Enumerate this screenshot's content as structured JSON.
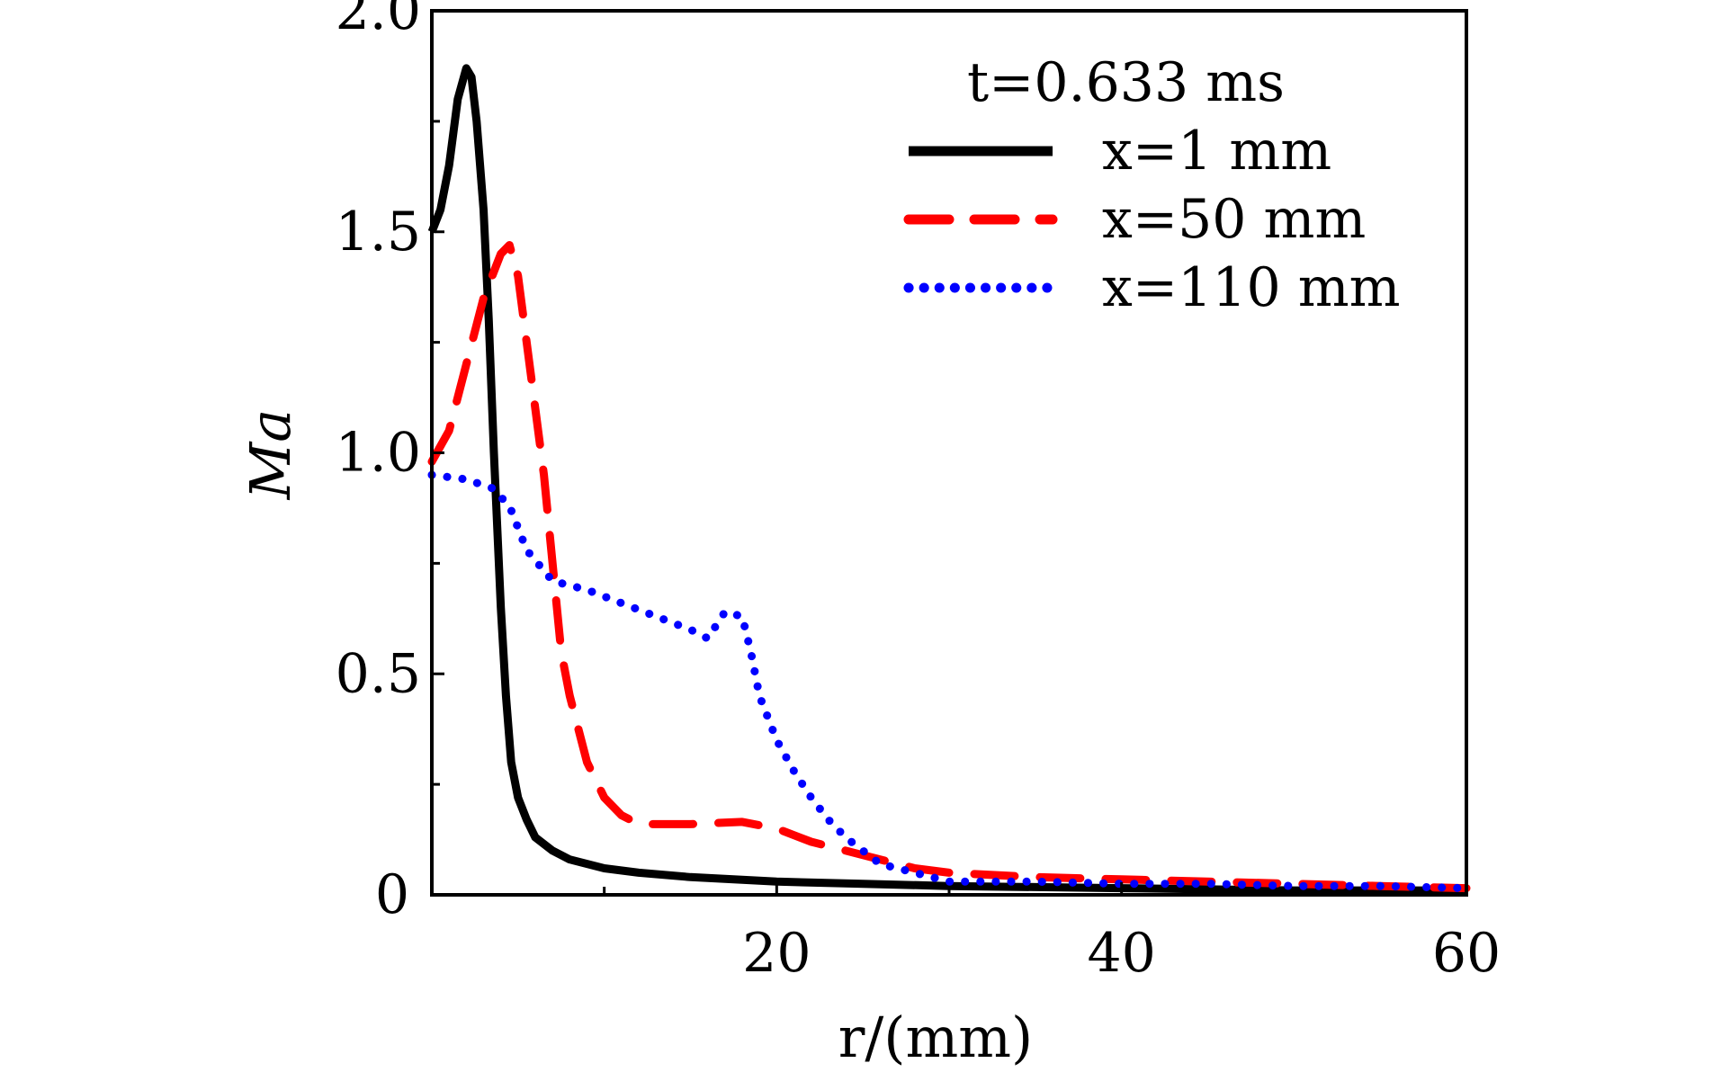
{
  "chart_data": {
    "type": "line",
    "title": "",
    "annotation": "t=0.633 ms",
    "xlabel": "r/(mm)",
    "ylabel": "Ma",
    "xlim": [
      0,
      60
    ],
    "ylim": [
      0,
      2.0
    ],
    "x_ticks": [
      20,
      40,
      60
    ],
    "x_tick_labels": [
      "20",
      "40",
      "60"
    ],
    "x_minor_ticks": [
      10,
      30,
      50
    ],
    "y_ticks": [
      0,
      0.5,
      1.0,
      1.5,
      2.0
    ],
    "y_tick_labels": [
      "0",
      "0.5",
      "1.0",
      "1.5",
      "2.0"
    ],
    "y_minor_ticks": [
      0.25,
      0.75,
      1.25,
      1.75
    ],
    "grid": false,
    "legend_position": "top-right",
    "series": [
      {
        "name": "x=1 mm",
        "color": "#000000",
        "style": "solid",
        "x": [
          0,
          0.5,
          1.0,
          1.5,
          2.0,
          2.3,
          2.6,
          3.0,
          3.3,
          3.6,
          4.0,
          4.3,
          4.6,
          5.0,
          5.5,
          6.0,
          7.0,
          8.0,
          10.0,
          12.0,
          15.0,
          20.0,
          25.0,
          30.0,
          40.0,
          50.0,
          60.0
        ],
        "y": [
          1.5,
          1.55,
          1.65,
          1.8,
          1.87,
          1.85,
          1.75,
          1.55,
          1.3,
          1.0,
          0.65,
          0.45,
          0.3,
          0.22,
          0.17,
          0.13,
          0.1,
          0.08,
          0.06,
          0.05,
          0.04,
          0.03,
          0.025,
          0.02,
          0.015,
          0.01,
          0.01
        ]
      },
      {
        "name": "x=50 mm",
        "color": "#ff0000",
        "style": "dashed",
        "x": [
          0,
          1.0,
          2.0,
          3.0,
          4.0,
          4.5,
          5.0,
          5.5,
          6.0,
          6.5,
          7.0,
          7.5,
          8.0,
          9.0,
          10.0,
          11.0,
          12.0,
          13.0,
          15.0,
          18.0,
          20.0,
          22.0,
          25.0,
          28.0,
          30.0,
          35.0,
          40.0,
          45.0,
          50.0,
          55.0,
          60.0
        ],
        "y": [
          0.98,
          1.05,
          1.2,
          1.35,
          1.45,
          1.47,
          1.4,
          1.25,
          1.1,
          0.95,
          0.75,
          0.55,
          0.45,
          0.3,
          0.22,
          0.18,
          0.16,
          0.16,
          0.16,
          0.165,
          0.15,
          0.12,
          0.09,
          0.06,
          0.05,
          0.04,
          0.035,
          0.03,
          0.025,
          0.02,
          0.015
        ]
      },
      {
        "name": "x=110 mm",
        "color": "#0000ff",
        "style": "dotted",
        "x": [
          0,
          2.0,
          3.5,
          4.5,
          5.5,
          7.0,
          9.0,
          11.0,
          13.0,
          15.0,
          16.0,
          17.0,
          18.0,
          18.5,
          19.0,
          20.0,
          21.0,
          22.0,
          23.0,
          24.0,
          25.0,
          26.0,
          28.0,
          30.0,
          35.0,
          40.0,
          45.0,
          50.0,
          55.0,
          60.0
        ],
        "y": [
          0.95,
          0.94,
          0.92,
          0.88,
          0.78,
          0.71,
          0.69,
          0.66,
          0.63,
          0.6,
          0.58,
          0.64,
          0.63,
          0.55,
          0.45,
          0.35,
          0.28,
          0.22,
          0.17,
          0.13,
          0.1,
          0.07,
          0.05,
          0.03,
          0.03,
          0.025,
          0.025,
          0.02,
          0.02,
          0.015
        ]
      }
    ]
  }
}
